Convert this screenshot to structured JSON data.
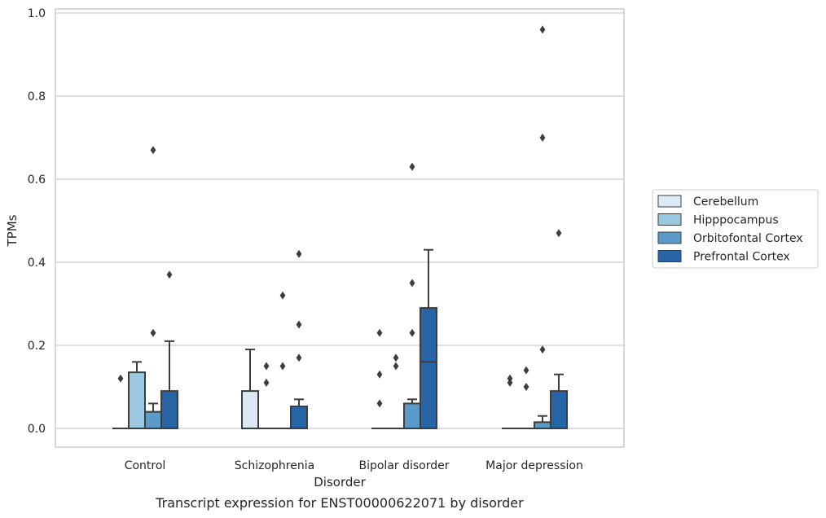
{
  "caption": "Transcript expression for ENST00000622071 by disorder",
  "chart_data": {
    "type": "box",
    "xlabel": "Disorder",
    "ylabel": "TPMs",
    "ylim": [
      -0.045,
      1.01
    ],
    "yticks": [
      0.0,
      0.2,
      0.4,
      0.6,
      0.8,
      1.0
    ],
    "ytick_labels": [
      "0.0",
      "0.2",
      "0.4",
      "0.6",
      "0.8",
      "1.0"
    ],
    "grid": true,
    "legend_position": "right",
    "categories": [
      "Control",
      "Schizophrenia",
      "Bipolar disorder",
      "Major depression"
    ],
    "series": [
      {
        "name": "Cerebellum",
        "color": "#dbe9f6",
        "boxes": [
          {
            "q1": 0.0,
            "median": 0.0,
            "q3": 0.0,
            "whisker_low": 0.0,
            "whisker_high": 0.0,
            "outliers": [
              0.12
            ]
          },
          {
            "q1": 0.0,
            "median": 0.0,
            "q3": 0.09,
            "whisker_low": 0.0,
            "whisker_high": 0.19,
            "outliers": []
          },
          {
            "q1": 0.0,
            "median": 0.0,
            "q3": 0.0,
            "whisker_low": 0.0,
            "whisker_high": 0.0,
            "outliers": [
              0.06,
              0.13,
              0.23
            ]
          },
          {
            "q1": 0.0,
            "median": 0.0,
            "q3": 0.0,
            "whisker_low": 0.0,
            "whisker_high": 0.0,
            "outliers": [
              0.11,
              0.12
            ]
          }
        ]
      },
      {
        "name": "Hipppocampus",
        "color": "#9ac8e0",
        "boxes": [
          {
            "q1": 0.0,
            "median": 0.0,
            "q3": 0.135,
            "whisker_low": 0.0,
            "whisker_high": 0.16,
            "outliers": []
          },
          {
            "q1": 0.0,
            "median": 0.0,
            "q3": 0.0,
            "whisker_low": 0.0,
            "whisker_high": 0.0,
            "outliers": [
              0.11,
              0.15
            ]
          },
          {
            "q1": 0.0,
            "median": 0.0,
            "q3": 0.0,
            "whisker_low": 0.0,
            "whisker_high": 0.0,
            "outliers": [
              0.15,
              0.17
            ]
          },
          {
            "q1": 0.0,
            "median": 0.0,
            "q3": 0.0,
            "whisker_low": 0.0,
            "whisker_high": 0.0,
            "outliers": [
              0.1,
              0.14
            ]
          }
        ]
      },
      {
        "name": "Orbitofontal Cortex",
        "color": "#5a9bc9",
        "boxes": [
          {
            "q1": 0.0,
            "median": 0.0,
            "q3": 0.04,
            "whisker_low": 0.0,
            "whisker_high": 0.06,
            "outliers": [
              0.23,
              0.67
            ]
          },
          {
            "q1": 0.0,
            "median": 0.0,
            "q3": 0.0,
            "whisker_low": 0.0,
            "whisker_high": 0.0,
            "outliers": [
              0.15,
              0.32
            ]
          },
          {
            "q1": 0.0,
            "median": 0.0,
            "q3": 0.06,
            "whisker_low": 0.0,
            "whisker_high": 0.07,
            "outliers": [
              0.23,
              0.35,
              0.63
            ]
          },
          {
            "q1": 0.0,
            "median": 0.0,
            "q3": 0.015,
            "whisker_low": 0.0,
            "whisker_high": 0.03,
            "outliers": [
              0.19,
              0.7,
              0.96
            ]
          }
        ]
      },
      {
        "name": "Prefrontal Cortex",
        "color": "#2865a6",
        "boxes": [
          {
            "q1": 0.0,
            "median": 0.0,
            "q3": 0.09,
            "whisker_low": 0.0,
            "whisker_high": 0.21,
            "outliers": [
              0.37
            ]
          },
          {
            "q1": 0.0,
            "median": 0.0,
            "q3": 0.053,
            "whisker_low": 0.0,
            "whisker_high": 0.07,
            "outliers": [
              0.17,
              0.25,
              0.42
            ]
          },
          {
            "q1": 0.0,
            "median": 0.16,
            "q3": 0.29,
            "whisker_low": 0.0,
            "whisker_high": 0.43,
            "outliers": []
          },
          {
            "q1": 0.0,
            "median": 0.0,
            "q3": 0.09,
            "whisker_low": 0.0,
            "whisker_high": 0.13,
            "outliers": [
              0.47
            ]
          }
        ]
      }
    ]
  }
}
